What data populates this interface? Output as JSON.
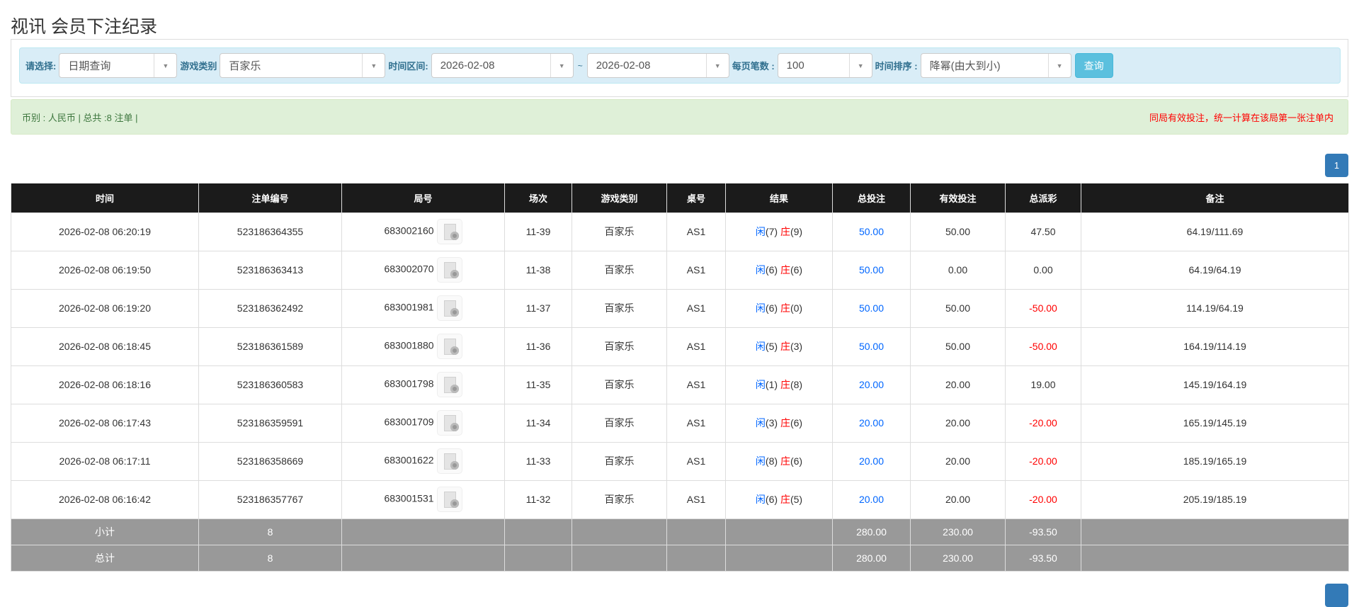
{
  "title": "视讯 会员下注纪录",
  "filters": {
    "select_label": "请选择:",
    "select_value": "日期查询",
    "game_label": "游戏类别",
    "game_value": "百家乐",
    "range_label": "时间区间:",
    "date_from": "2026-02-08",
    "range_sep": "~",
    "date_to": "2026-02-08",
    "per_page_label": "每页笔数 :",
    "per_page_value": "100",
    "sort_label": "时间排序 :",
    "sort_value": "降幂(由大到小)",
    "query_button": "查询"
  },
  "info": {
    "left": "币别 : 人民币 | 总共 :8 注单 |",
    "right": "同局有效投注，统一计算在该局第一张注单内"
  },
  "pagination": {
    "current": "1"
  },
  "colors": {
    "header_bg": "#1b1b1b",
    "blue": "#0066ff",
    "red": "#ff0000",
    "summary_bg": "#999999",
    "primary": "#337ab7",
    "info_btn": "#5bc0de"
  },
  "table": {
    "headers": [
      "时间",
      "注单编号",
      "局号",
      "场次",
      "游戏类别",
      "桌号",
      "结果",
      "总投注",
      "有效投注",
      "总派彩",
      "备注"
    ],
    "rows": [
      {
        "time": "2026-02-08 06:20:19",
        "bet_id": "523186364355",
        "round": "683002160",
        "session": "11-39",
        "game": "百家乐",
        "table": "AS1",
        "player": "闲",
        "player_pts": "(7)",
        "banker": "庄",
        "banker_pts": "(9)",
        "total": "50.00",
        "valid": "50.00",
        "payout": "47.50",
        "payout_neg": false,
        "note": "64.19/111.69"
      },
      {
        "time": "2026-02-08 06:19:50",
        "bet_id": "523186363413",
        "round": "683002070",
        "session": "11-38",
        "game": "百家乐",
        "table": "AS1",
        "player": "闲",
        "player_pts": "(6)",
        "banker": "庄",
        "banker_pts": "(6)",
        "total": "50.00",
        "valid": "0.00",
        "payout": "0.00",
        "payout_neg": false,
        "note": "64.19/64.19"
      },
      {
        "time": "2026-02-08 06:19:20",
        "bet_id": "523186362492",
        "round": "683001981",
        "session": "11-37",
        "game": "百家乐",
        "table": "AS1",
        "player": "闲",
        "player_pts": "(6)",
        "banker": "庄",
        "banker_pts": "(0)",
        "total": "50.00",
        "valid": "50.00",
        "payout": "-50.00",
        "payout_neg": true,
        "note": "114.19/64.19"
      },
      {
        "time": "2026-02-08 06:18:45",
        "bet_id": "523186361589",
        "round": "683001880",
        "session": "11-36",
        "game": "百家乐",
        "table": "AS1",
        "player": "闲",
        "player_pts": "(5)",
        "banker": "庄",
        "banker_pts": "(3)",
        "total": "50.00",
        "valid": "50.00",
        "payout": "-50.00",
        "payout_neg": true,
        "note": "164.19/114.19"
      },
      {
        "time": "2026-02-08 06:18:16",
        "bet_id": "523186360583",
        "round": "683001798",
        "session": "11-35",
        "game": "百家乐",
        "table": "AS1",
        "player": "闲",
        "player_pts": "(1)",
        "banker": "庄",
        "banker_pts": "(8)",
        "total": "20.00",
        "valid": "20.00",
        "payout": "19.00",
        "payout_neg": false,
        "note": "145.19/164.19"
      },
      {
        "time": "2026-02-08 06:17:43",
        "bet_id": "523186359591",
        "round": "683001709",
        "session": "11-34",
        "game": "百家乐",
        "table": "AS1",
        "player": "闲",
        "player_pts": "(3)",
        "banker": "庄",
        "banker_pts": "(6)",
        "total": "20.00",
        "valid": "20.00",
        "payout": "-20.00",
        "payout_neg": true,
        "note": "165.19/145.19"
      },
      {
        "time": "2026-02-08 06:17:11",
        "bet_id": "523186358669",
        "round": "683001622",
        "session": "11-33",
        "game": "百家乐",
        "table": "AS1",
        "player": "闲",
        "player_pts": "(8)",
        "banker": "庄",
        "banker_pts": "(6)",
        "total": "20.00",
        "valid": "20.00",
        "payout": "-20.00",
        "payout_neg": true,
        "note": "185.19/165.19"
      },
      {
        "time": "2026-02-08 06:16:42",
        "bet_id": "523186357767",
        "round": "683001531",
        "session": "11-32",
        "game": "百家乐",
        "table": "AS1",
        "player": "闲",
        "player_pts": "(6)",
        "banker": "庄",
        "banker_pts": "(5)",
        "total": "20.00",
        "valid": "20.00",
        "payout": "-20.00",
        "payout_neg": true,
        "note": "205.19/185.19"
      }
    ],
    "summary": [
      {
        "label": "小计",
        "count": "8",
        "total": "280.00",
        "valid": "230.00",
        "payout": "-93.50"
      },
      {
        "label": "总计",
        "count": "8",
        "total": "280.00",
        "valid": "230.00",
        "payout": "-93.50"
      }
    ]
  }
}
